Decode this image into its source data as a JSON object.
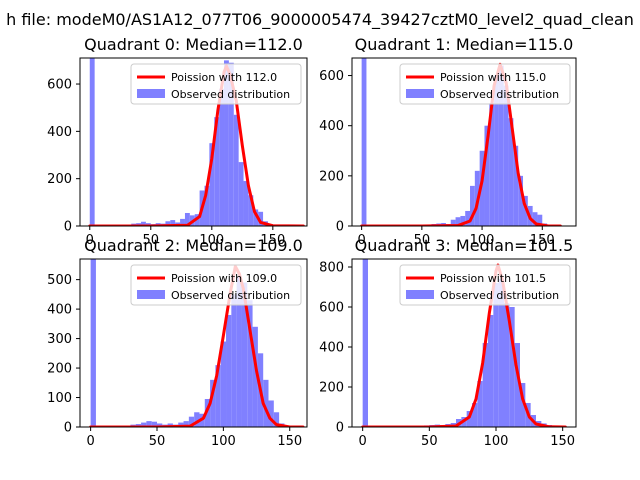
{
  "figure": {
    "suptitle": "h file: modeM0/AS1A12_077T06_9000005474_39427cztM0_level2_quad_clean"
  },
  "colors": {
    "hist": "#8080ff",
    "fit": "#ff0000",
    "axes": "#000000",
    "background": "#ffffff"
  },
  "chart_data": [
    {
      "type": "bar",
      "title": "Quadrant 0: Median=112.0",
      "xlim": [
        -8,
        178
      ],
      "ylim": [
        0,
        710
      ],
      "xticks": [
        0,
        50,
        100,
        150
      ],
      "yticks": [
        0,
        200,
        400,
        600
      ],
      "legend": {
        "placement": "top-right",
        "entries": [
          "Poission with 112.0",
          "Observed distribution"
        ]
      },
      "series": [
        {
          "name": "Poission with 112.0",
          "kind": "line",
          "mean": 112.0,
          "peak": 676,
          "x": [
            0,
            50,
            80,
            90,
            95,
            100,
            105,
            110,
            112,
            115,
            120,
            125,
            130,
            135,
            140,
            150,
            175
          ],
          "y": [
            0,
            0,
            3,
            40,
            130,
            285,
            490,
            650,
            676,
            640,
            530,
            340,
            170,
            60,
            15,
            1,
            0
          ]
        },
        {
          "name": "Observed distribution",
          "kind": "histogram",
          "bin_width": 4,
          "x": [
            0,
            34,
            38,
            42,
            46,
            50,
            54,
            58,
            62,
            66,
            70,
            74,
            78,
            82,
            86,
            90,
            94,
            98,
            102,
            106,
            110,
            114,
            118,
            122,
            126,
            130,
            134,
            138,
            142,
            146
          ],
          "y": [
            710,
            10,
            12,
            18,
            12,
            8,
            12,
            10,
            20,
            25,
            15,
            30,
            55,
            45,
            50,
            150,
            170,
            350,
            460,
            580,
            700,
            690,
            470,
            270,
            190,
            130,
            70,
            60,
            20,
            8
          ]
        }
      ]
    },
    {
      "type": "bar",
      "title": "Quadrant 1: Median=115.0",
      "xlim": [
        -8,
        178
      ],
      "ylim": [
        0,
        670
      ],
      "xticks": [
        0,
        50,
        100,
        150
      ],
      "yticks": [
        0,
        200,
        400,
        600
      ],
      "legend": {
        "placement": "top-right",
        "entries": [
          "Poission with 115.0",
          "Observed distribution"
        ]
      },
      "series": [
        {
          "name": "Poission with 115.0",
          "kind": "line",
          "mean": 115.0,
          "peak": 645,
          "x": [
            0,
            50,
            80,
            90,
            95,
            100,
            105,
            110,
            115,
            120,
            125,
            130,
            135,
            140,
            145,
            155,
            165
          ],
          "y": [
            0,
            0,
            2,
            20,
            70,
            180,
            360,
            560,
            645,
            570,
            390,
            210,
            90,
            30,
            8,
            0,
            0
          ]
        },
        {
          "name": "Observed distribution",
          "kind": "histogram",
          "bin_width": 4,
          "x": [
            0,
            58,
            62,
            66,
            70,
            74,
            78,
            82,
            86,
            90,
            94,
            98,
            102,
            106,
            110,
            114,
            118,
            122,
            126,
            130,
            134,
            138,
            142,
            146,
            150
          ],
          "y": [
            670,
            8,
            10,
            12,
            8,
            25,
            35,
            40,
            60,
            160,
            220,
            300,
            400,
            490,
            600,
            640,
            560,
            430,
            320,
            200,
            120,
            80,
            55,
            45,
            10
          ]
        }
      ]
    },
    {
      "type": "bar",
      "title": "Quadrant 2: Median=109.0",
      "xlim": [
        -8,
        163
      ],
      "ylim": [
        0,
        570
      ],
      "xticks": [
        0,
        50,
        100,
        150
      ],
      "yticks": [
        0,
        100,
        200,
        300,
        400,
        500
      ],
      "legend": {
        "placement": "top-right",
        "entries": [
          "Poission with 109.0",
          "Observed distribution"
        ]
      },
      "series": [
        {
          "name": "Poission with 109.0",
          "kind": "line",
          "mean": 109.0,
          "peak": 545,
          "x": [
            0,
            50,
            75,
            85,
            90,
            95,
            100,
            105,
            109,
            112,
            115,
            120,
            125,
            130,
            135,
            140,
            150,
            160
          ],
          "y": [
            0,
            0,
            3,
            30,
            80,
            175,
            310,
            450,
            545,
            520,
            470,
            330,
            190,
            80,
            30,
            8,
            0,
            0
          ]
        },
        {
          "name": "Observed distribution",
          "kind": "histogram",
          "bin_width": 4,
          "x": [
            0,
            30,
            34,
            38,
            42,
            46,
            50,
            54,
            58,
            62,
            66,
            70,
            74,
            78,
            82,
            86,
            90,
            94,
            98,
            102,
            106,
            110,
            114,
            118,
            122,
            126,
            130,
            134,
            138,
            142
          ],
          "y": [
            570,
            8,
            10,
            15,
            20,
            18,
            12,
            8,
            12,
            8,
            15,
            20,
            35,
            50,
            45,
            95,
            160,
            210,
            290,
            380,
            450,
            510,
            490,
            430,
            340,
            250,
            160,
            90,
            50,
            12
          ]
        }
      ]
    },
    {
      "type": "bar",
      "title": "Quadrant 3: Median=101.5",
      "xlim": [
        -8,
        160
      ],
      "ylim": [
        0,
        840
      ],
      "xticks": [
        0,
        50,
        100,
        150
      ],
      "yticks": [
        0,
        200,
        400,
        600,
        800
      ],
      "legend": {
        "placement": "top-right",
        "entries": [
          "Poission with 101.5",
          "Observed distribution"
        ]
      },
      "series": [
        {
          "name": "Poission with 101.5",
          "kind": "line",
          "mean": 101.5,
          "peak": 810,
          "x": [
            0,
            50,
            70,
            80,
            85,
            90,
            95,
            100,
            101.5,
            105,
            110,
            115,
            120,
            125,
            130,
            140,
            152
          ],
          "y": [
            0,
            0,
            5,
            50,
            140,
            320,
            570,
            780,
            810,
            730,
            530,
            310,
            140,
            50,
            15,
            1,
            0
          ]
        },
        {
          "name": "Observed distribution",
          "kind": "histogram",
          "bin_width": 4,
          "x": [
            0,
            46,
            50,
            54,
            58,
            62,
            66,
            70,
            74,
            78,
            82,
            86,
            90,
            94,
            98,
            102,
            106,
            110,
            114,
            118,
            122,
            126,
            130,
            134,
            138
          ],
          "y": [
            840,
            8,
            10,
            12,
            10,
            15,
            20,
            40,
            50,
            80,
            120,
            230,
            420,
            560,
            720,
            740,
            620,
            600,
            420,
            220,
            120,
            60,
            30,
            18,
            10
          ]
        }
      ]
    }
  ]
}
